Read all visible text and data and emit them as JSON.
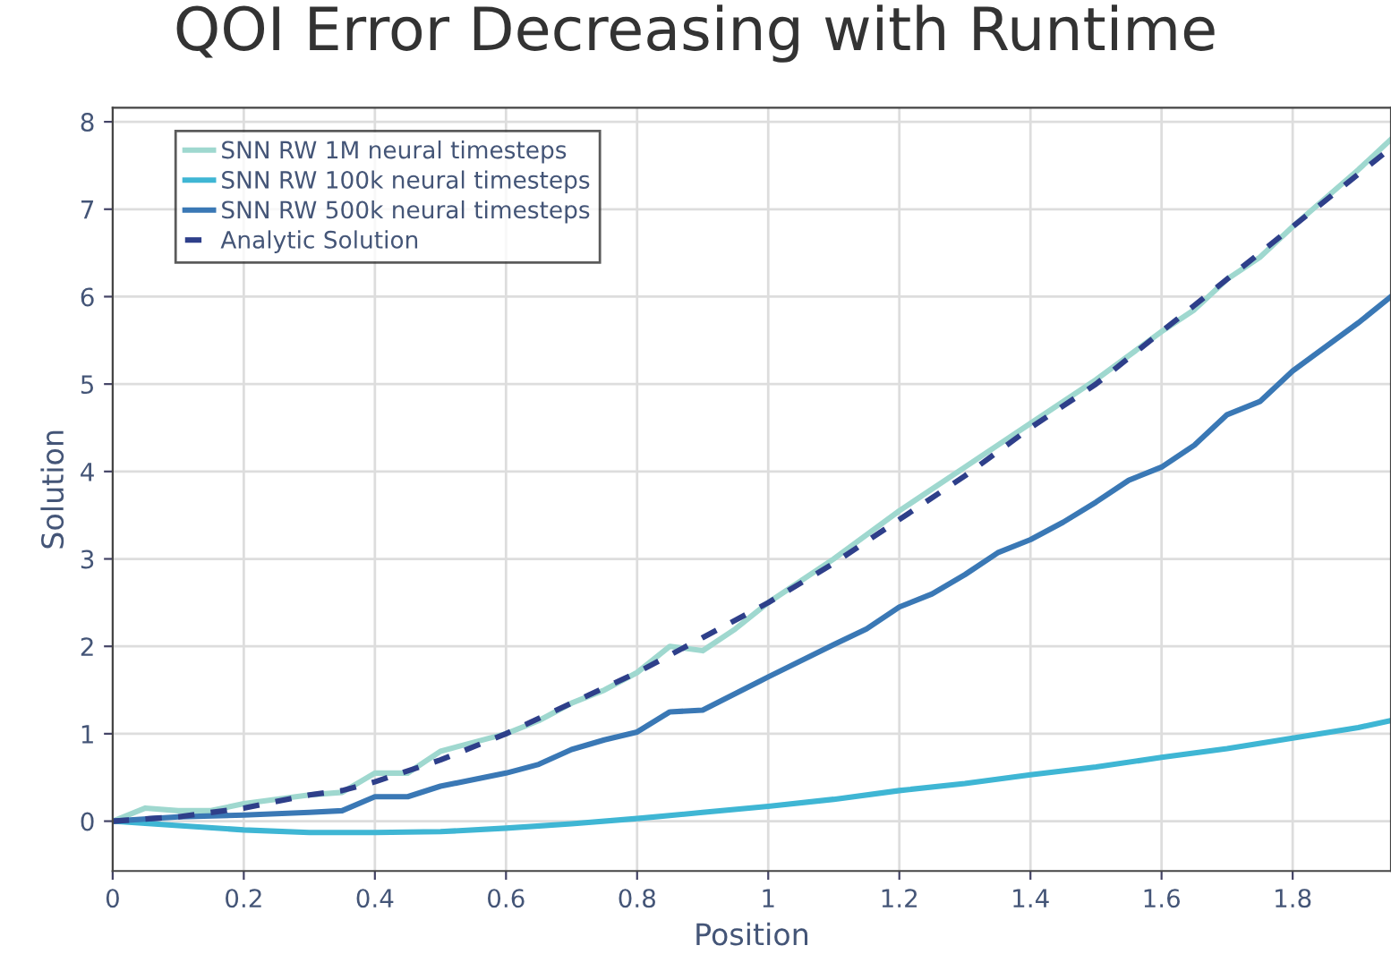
{
  "chart_data": {
    "type": "line",
    "title": "QOI Error Decreasing with Runtime",
    "xlabel": "Position",
    "ylabel": "Solution",
    "xlim": [
      0,
      1.95
    ],
    "ylim": [
      -0.57,
      8.16
    ],
    "xticks": [
      0,
      0.2,
      0.4,
      0.6,
      0.8,
      1,
      1.2,
      1.4,
      1.6,
      1.8
    ],
    "yticks": [
      0,
      1,
      2,
      3,
      4,
      5,
      6,
      7,
      8
    ],
    "grid": true,
    "legend": "top left",
    "series": [
      {
        "name": "SNN RW 1M neural timesteps",
        "color": "#9fd8cf",
        "line_style": "solid",
        "x": [
          0,
          0.05,
          0.1,
          0.15,
          0.2,
          0.3,
          0.35,
          0.4,
          0.45,
          0.5,
          0.55,
          0.6,
          0.65,
          0.7,
          0.75,
          0.8,
          0.85,
          0.9,
          0.95,
          1.0,
          1.1,
          1.2,
          1.3,
          1.35,
          1.4,
          1.5,
          1.6,
          1.65,
          1.7,
          1.75,
          1.8,
          1.9,
          1.95
        ],
        "values": [
          0,
          0.15,
          0.12,
          0.12,
          0.2,
          0.3,
          0.33,
          0.55,
          0.55,
          0.8,
          0.9,
          1.0,
          1.15,
          1.35,
          1.5,
          1.7,
          2.0,
          1.95,
          2.2,
          2.5,
          3.0,
          3.55,
          4.05,
          4.3,
          4.55,
          5.05,
          5.6,
          5.85,
          6.2,
          6.45,
          6.8,
          7.45,
          7.8
        ]
      },
      {
        "name": "SNN RW 100k neural timesteps",
        "color": "#3fb6d4",
        "line_style": "solid",
        "x": [
          0,
          0.1,
          0.2,
          0.3,
          0.4,
          0.5,
          0.6,
          0.7,
          0.8,
          0.9,
          1.0,
          1.1,
          1.2,
          1.3,
          1.4,
          1.5,
          1.6,
          1.7,
          1.8,
          1.9,
          1.95
        ],
        "values": [
          0,
          -0.05,
          -0.1,
          -0.13,
          -0.13,
          -0.12,
          -0.08,
          -0.03,
          0.03,
          0.1,
          0.17,
          0.25,
          0.35,
          0.43,
          0.53,
          0.62,
          0.73,
          0.83,
          0.95,
          1.07,
          1.15
        ]
      },
      {
        "name": "SNN RW 500k neural timesteps",
        "color": "#3a78b5",
        "line_style": "solid",
        "x": [
          0,
          0.1,
          0.2,
          0.3,
          0.35,
          0.4,
          0.45,
          0.5,
          0.6,
          0.65,
          0.7,
          0.75,
          0.8,
          0.85,
          0.9,
          1.0,
          1.1,
          1.15,
          1.2,
          1.25,
          1.3,
          1.35,
          1.4,
          1.45,
          1.5,
          1.55,
          1.6,
          1.65,
          1.7,
          1.75,
          1.8,
          1.9,
          1.95
        ],
        "values": [
          0,
          0.05,
          0.07,
          0.1,
          0.12,
          0.28,
          0.28,
          0.4,
          0.55,
          0.65,
          0.82,
          0.93,
          1.02,
          1.25,
          1.27,
          1.65,
          2.02,
          2.2,
          2.45,
          2.6,
          2.82,
          3.07,
          3.22,
          3.42,
          3.65,
          3.9,
          4.05,
          4.3,
          4.65,
          4.8,
          5.15,
          5.7,
          6.0
        ]
      },
      {
        "name": "Analytic Solution",
        "color": "#2e3f8a",
        "line_style": "dashed",
        "x": [
          0,
          0.1,
          0.2,
          0.3,
          0.35,
          0.4,
          0.5,
          0.6,
          0.7,
          0.8,
          0.9,
          1.0,
          1.1,
          1.2,
          1.3,
          1.4,
          1.5,
          1.6,
          1.7,
          1.8,
          1.9,
          1.95
        ],
        "values": [
          0,
          0.05,
          0.15,
          0.3,
          0.35,
          0.45,
          0.7,
          1.0,
          1.35,
          1.7,
          2.1,
          2.5,
          2.95,
          3.45,
          3.95,
          4.5,
          5.0,
          5.6,
          6.2,
          6.8,
          7.4,
          7.7
        ]
      }
    ]
  }
}
